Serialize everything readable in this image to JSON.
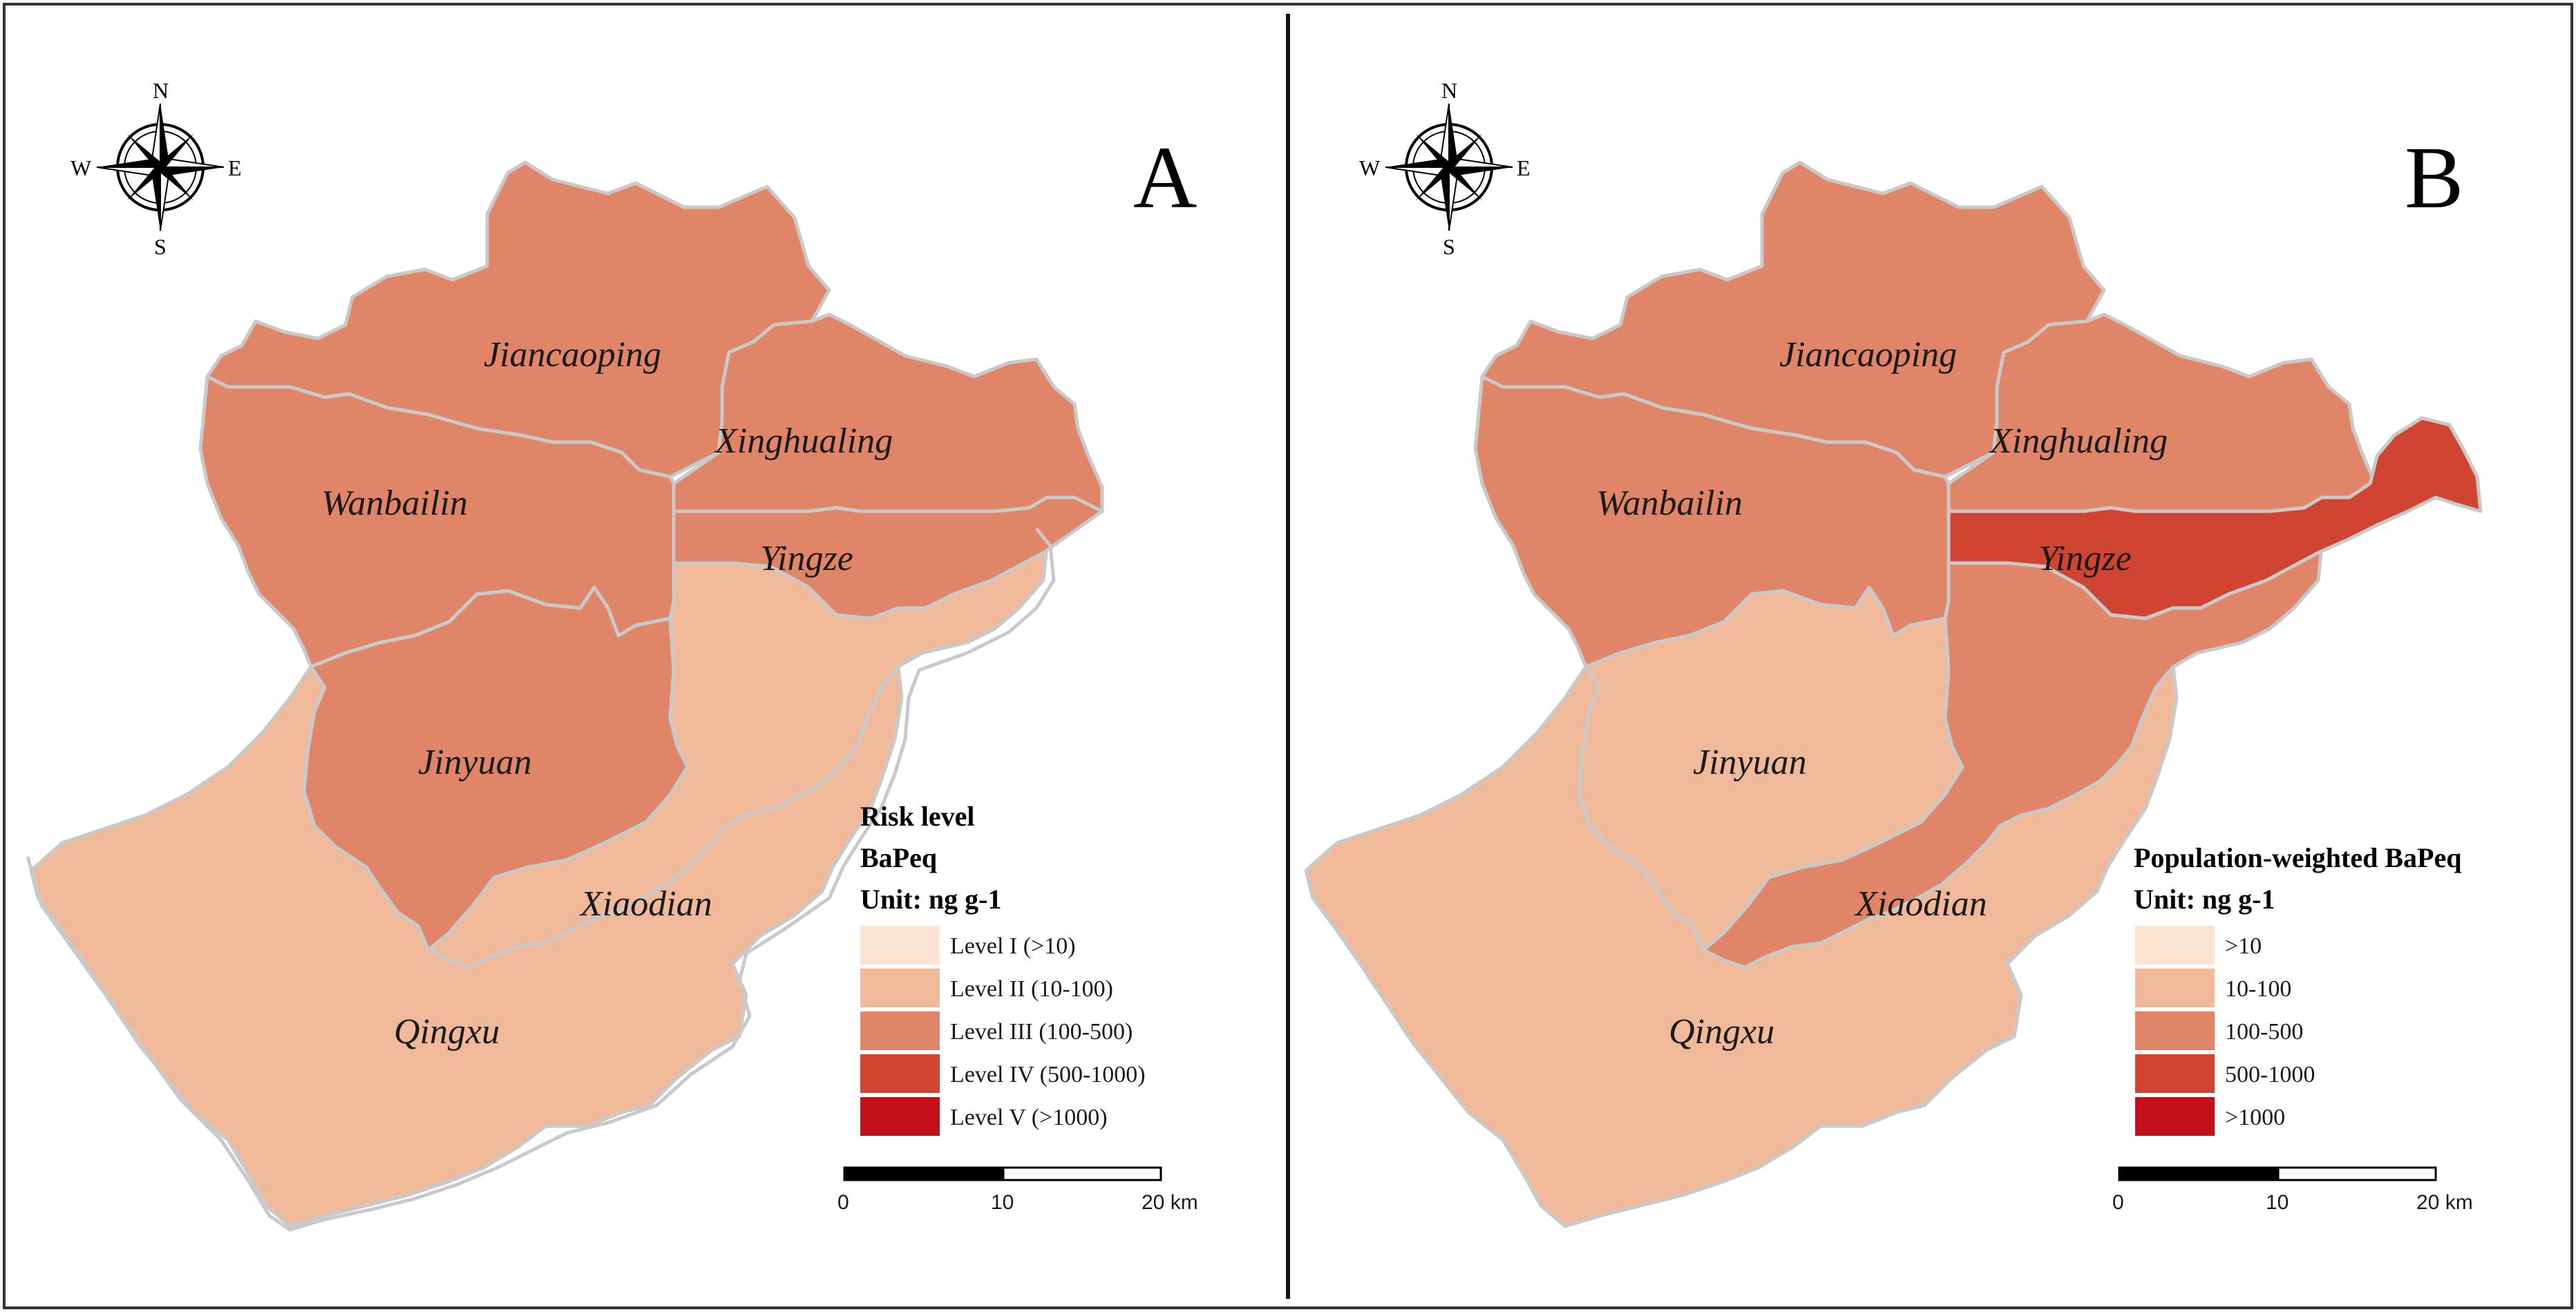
{
  "panels": [
    {
      "letter": "A",
      "legend": {
        "title_lines": [
          "Risk level",
          "BaPeq",
          "Unit: ng g-1"
        ],
        "items": [
          {
            "label": "Level I (>10)",
            "color": "#fbe3d3"
          },
          {
            "label": "Level II (10-100)",
            "color": "#f0b999"
          },
          {
            "label": "Level III (100-500)",
            "color": "#e08567"
          },
          {
            "label": "Level IV (500-1000)",
            "color": "#d14431"
          },
          {
            "label": "Level V (>1000)",
            "color": "#c4101a"
          }
        ]
      },
      "districts": [
        {
          "name": "Jiancaoping",
          "level": "III",
          "color": "#e08567"
        },
        {
          "name": "Xinghualing",
          "level": "III",
          "color": "#e08567"
        },
        {
          "name": "Wanbailin",
          "level": "III",
          "color": "#e08567"
        },
        {
          "name": "Yingze",
          "level": "III",
          "color": "#e08567"
        },
        {
          "name": "Jinyuan",
          "level": "III",
          "color": "#e08567"
        },
        {
          "name": "Xiaodian",
          "level": "II",
          "color": "#f0b999"
        },
        {
          "name": "Qingxu",
          "level": "II",
          "color": "#f0b999"
        }
      ]
    },
    {
      "letter": "B",
      "legend": {
        "title_lines": [
          "Population-weighted BaPeq",
          "Unit: ng g-1"
        ],
        "items": [
          {
            "label": ">10",
            "color": "#fbe3d3"
          },
          {
            "label": "10-100",
            "color": "#f0b999"
          },
          {
            "label": "100-500",
            "color": "#e08567"
          },
          {
            "label": "500-1000",
            "color": "#d14431"
          },
          {
            "label": ">1000",
            "color": "#c4101a"
          }
        ]
      },
      "districts": [
        {
          "name": "Jiancaoping",
          "level": "100-500",
          "color": "#e08567"
        },
        {
          "name": "Xinghualing",
          "level": "100-500",
          "color": "#e08567"
        },
        {
          "name": "Wanbailin",
          "level": "100-500",
          "color": "#e08567"
        },
        {
          "name": "Yingze",
          "level": "500-1000",
          "color": "#d14431"
        },
        {
          "name": "Jinyuan",
          "level": "10-100",
          "color": "#f0b999"
        },
        {
          "name": "Xiaodian",
          "level": "100-500",
          "color": "#e08567"
        },
        {
          "name": "Qingxu",
          "level": "10-100",
          "color": "#f0b999"
        }
      ]
    }
  ],
  "compass": {
    "n": "N",
    "s": "S",
    "e": "E",
    "w": "W"
  },
  "scale_bar": {
    "ticks": [
      "0",
      "10",
      "20 km"
    ]
  }
}
